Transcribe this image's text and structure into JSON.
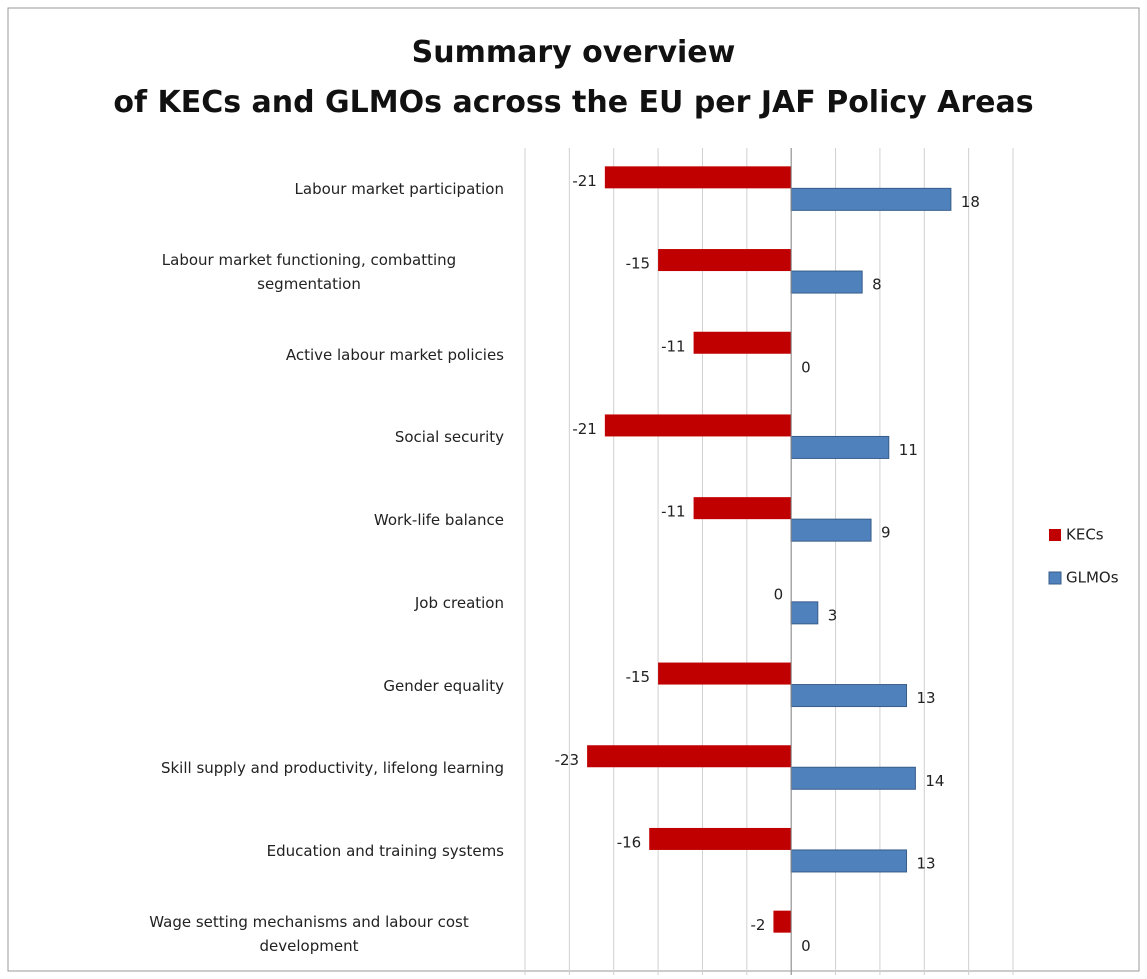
{
  "chart_data": {
    "type": "bar",
    "orientation": "horizontal",
    "title": "Summary overview\nof KECs and GLMOs across the EU per JAF Policy Areas",
    "categories": [
      "Labour market participation",
      "Labour market functioning, combatting segmentation",
      "Active labour market policies",
      "Social security",
      "Work-life balance",
      "Job creation",
      "Gender equality",
      "Skill supply and productivity, lifelong learning",
      "Education and training systems",
      "Wage setting mechanisms and labour cost development"
    ],
    "series": [
      {
        "name": "KECs",
        "color": "#c00000",
        "values": [
          -21,
          -15,
          -11,
          -21,
          -11,
          0,
          -15,
          -23,
          -16,
          -2
        ]
      },
      {
        "name": "GLMOs",
        "color": "#4f81bd",
        "values": [
          18,
          8,
          0,
          11,
          9,
          3,
          13,
          14,
          13,
          0
        ]
      }
    ],
    "xlim": [
      -30,
      25
    ],
    "xticks": [
      -30,
      -25,
      -20,
      -15,
      -10,
      -5,
      0,
      5,
      10,
      15,
      20,
      25
    ],
    "grid": true,
    "legend": "right"
  }
}
